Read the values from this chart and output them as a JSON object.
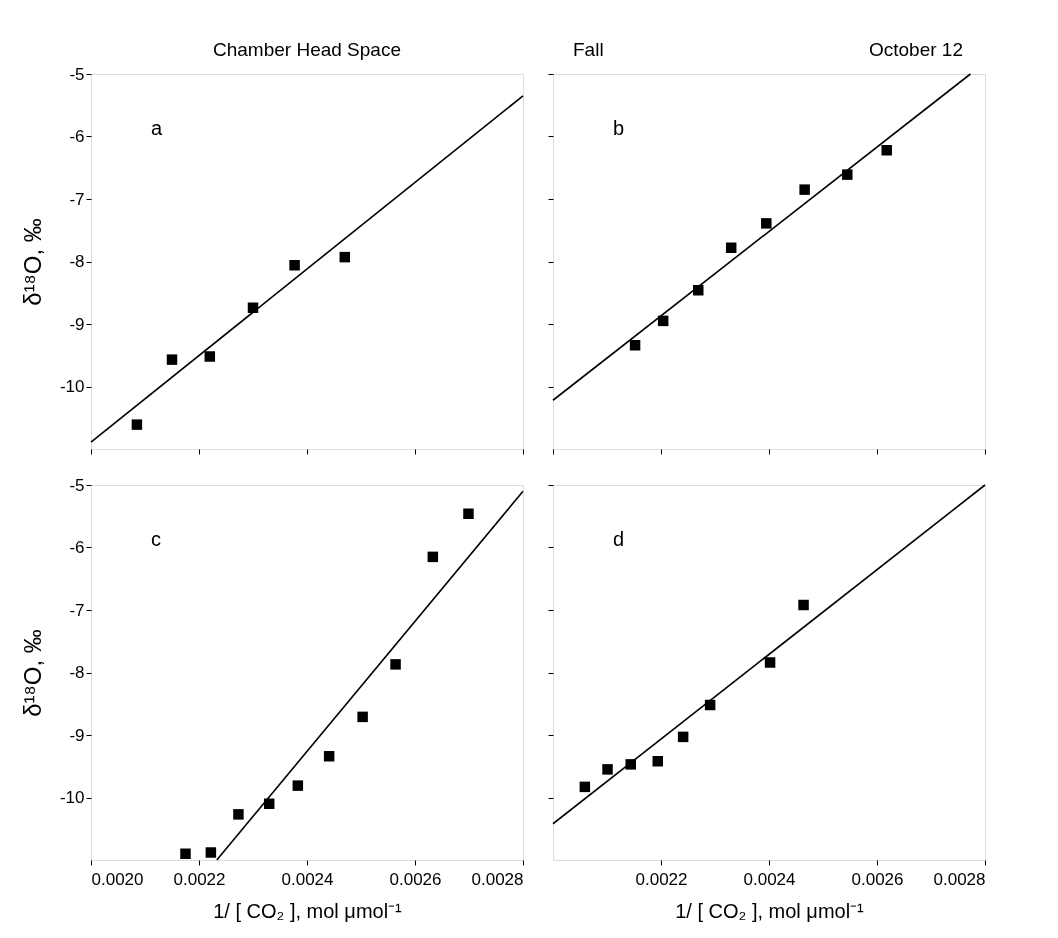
{
  "chart_data": [
    {
      "type": "scatter",
      "title": "Chamber Head Space",
      "ylabel": "δ¹⁸O, ‰",
      "annotations": [
        "a"
      ],
      "tick_labels": "y",
      "xlim": [
        0.002,
        0.0028
      ],
      "xticks": [
        {
          "value": 0.002,
          "label": null
        },
        {
          "value": 0.0022,
          "label": null
        },
        {
          "value": 0.0024,
          "label": null
        },
        {
          "value": 0.0026,
          "label": null
        },
        {
          "value": 0.0028,
          "label": null
        }
      ],
      "ylim": [
        -11,
        -5
      ],
      "yticks": [
        -10,
        -9,
        -8,
        -7,
        -6,
        -5
      ],
      "series": [
        {
          "marker": "square",
          "color": "#000000",
          "x": [
            0.002085,
            0.00215,
            0.00222,
            0.0023,
            0.002377,
            0.00247
          ],
          "values": [
            -10.61,
            -9.57,
            -9.52,
            -8.74,
            -8.06,
            -7.93
          ]
        },
        {
          "type": "line",
          "color": "#000000",
          "x": [
            0.002,
            0.0028
          ],
          "values": [
            -10.89,
            -5.35
          ]
        }
      ]
    },
    {
      "type": "scatter",
      "title": "Fall",
      "annotations": [
        "b",
        "October 12"
      ],
      "tick_labels": false,
      "xlim": [
        0.002,
        0.0028
      ],
      "xticks": [
        {
          "value": 0.002,
          "label": null
        },
        {
          "value": 0.0022,
          "label": null
        },
        {
          "value": 0.0024,
          "label": null
        },
        {
          "value": 0.0026,
          "label": null
        },
        {
          "value": 0.0028,
          "label": null
        }
      ],
      "ylim": [
        -11,
        -5
      ],
      "yticks": [
        -10,
        -9,
        -8,
        -7,
        -6,
        -5
      ],
      "series": [
        {
          "marker": "square",
          "color": "#000000",
          "x": [
            0.002152,
            0.002204,
            0.002269,
            0.00233,
            0.002395,
            0.002466,
            0.002545,
            0.002618
          ],
          "values": [
            -9.34,
            -8.95,
            -8.46,
            -7.78,
            -7.39,
            -6.85,
            -6.61,
            -6.22
          ]
        },
        {
          "type": "line",
          "color": "#000000",
          "x": [
            0.002,
            0.002773
          ],
          "values": [
            -10.22,
            -5.0
          ]
        }
      ]
    },
    {
      "type": "scatter",
      "xlabel": "1/ [ CO₂ ], mol μmol⁻¹",
      "ylabel": "δ¹⁸O, ‰",
      "annotations": [
        "c"
      ],
      "xlim": [
        0.002,
        0.0028
      ],
      "xticks": [
        {
          "value": 0.002,
          "label": "0.0020"
        },
        {
          "value": 0.0022,
          "label": "0.0022"
        },
        {
          "value": 0.0024,
          "label": "0.0024"
        },
        {
          "value": 0.0026,
          "label": "0.0026"
        },
        {
          "value": 0.0028,
          "label": "0.0028"
        }
      ],
      "ylim": [
        -11,
        -5
      ],
      "yticks": [
        -10,
        -9,
        -8,
        -7,
        -6,
        -5
      ],
      "series": [
        {
          "marker": "square",
          "color": "#000000",
          "x": [
            0.002175,
            0.002222,
            0.002273,
            0.00233,
            0.002383,
            0.002441,
            0.002503,
            0.002564,
            0.002633,
            0.002699
          ],
          "values": [
            -10.9,
            -10.88,
            -10.27,
            -10.1,
            -9.81,
            -9.34,
            -8.71,
            -7.87,
            -6.15,
            -5.46
          ]
        },
        {
          "type": "line",
          "color": "#000000",
          "x": [
            0.002233,
            0.0028
          ],
          "values": [
            -11.0,
            -5.1
          ]
        }
      ]
    },
    {
      "type": "scatter",
      "xlabel": "1/ [ CO₂ ], mol μmol⁻¹",
      "annotations": [
        "d"
      ],
      "tick_labels": "x",
      "xlim": [
        0.002,
        0.0028
      ],
      "xticks": [
        {
          "value": 0.0022,
          "label": "0.0022"
        },
        {
          "value": 0.0024,
          "label": "0.0024"
        },
        {
          "value": 0.0026,
          "label": "0.0026"
        },
        {
          "value": 0.0028,
          "label": "0.0028"
        }
      ],
      "ylim": [
        -11,
        -5
      ],
      "yticks": [
        -10,
        -9,
        -8,
        -7,
        -6,
        -5
      ],
      "series": [
        {
          "marker": "square",
          "color": "#000000",
          "x": [
            0.002059,
            0.002101,
            0.002144,
            0.002194,
            0.002241,
            0.002291,
            0.002402,
            0.002464
          ],
          "values": [
            -9.83,
            -9.55,
            -9.47,
            -9.42,
            -9.03,
            -8.52,
            -7.84,
            -6.92
          ]
        },
        {
          "type": "line",
          "color": "#000000",
          "x": [
            0.002,
            0.0028
          ],
          "values": [
            -10.42,
            -5.0
          ]
        }
      ]
    }
  ]
}
